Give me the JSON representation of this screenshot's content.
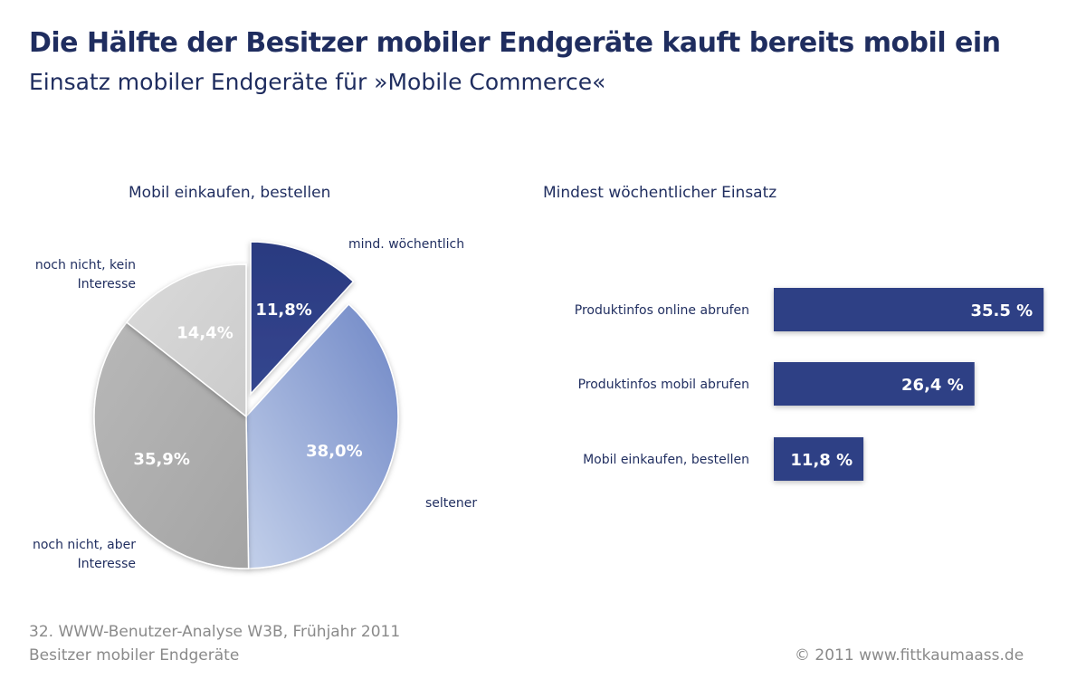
{
  "header": {
    "title": "Die Hälfte der Besitzer mobiler Endgeräte kauft bereits mobil ein",
    "subtitle": "Einsatz mobiler Endgeräte für »Mobile Commerce«"
  },
  "chart_data": [
    {
      "type": "pie",
      "title": "Mobil einkaufen, bestellen",
      "slices": [
        {
          "name": "mind. wöchentlich",
          "value": 11.8,
          "label": "11,8%",
          "color": "#2e3f85",
          "exploded": true
        },
        {
          "name": "seltener",
          "value": 38.0,
          "label": "38,0%",
          "color": "#7d93cc"
        },
        {
          "name": "noch nicht, aber Interesse",
          "value": 35.9,
          "label": "35,9%",
          "color": "#b0b0b0"
        },
        {
          "name": "noch nicht, kein Interesse",
          "value": 14.4,
          "label": "14,4%",
          "color": "#d4d4d4"
        }
      ]
    },
    {
      "type": "bar",
      "orientation": "horizontal",
      "title": "Mindest wöchentlicher Einsatz",
      "categories": [
        "Produktinfos online abrufen",
        "Produktinfos mobil abrufen",
        "Mobil einkaufen, bestellen"
      ],
      "values": [
        35.5,
        26.4,
        11.8
      ],
      "labels": [
        "35.5 %",
        "26,4 %",
        "11,8 %"
      ],
      "color": "#2e3f85"
    }
  ],
  "footer": {
    "source_line1": "32. WWW-Benutzer-Analyse W3B, Frühjahr 2011",
    "source_line2": "Besitzer mobiler Endgeräte",
    "copyright": "© 2011 www.fittkaumaass.de"
  }
}
